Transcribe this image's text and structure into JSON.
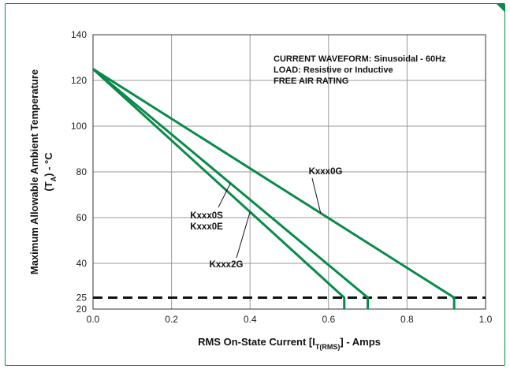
{
  "chart_data": {
    "type": "line",
    "ylabel_line1": "Maximum Allowable Ambient Temperature",
    "ylabel_line2_prefix": "(T",
    "ylabel_line2_sub": "A",
    "ylabel_line2_suffix": ") - °C",
    "xlabel_prefix": "RMS On-State Current [I",
    "xlabel_sub": "T(RMS)",
    "xlabel_suffix": "] - Amps",
    "xlim": [
      0,
      1.0
    ],
    "ylim": [
      20,
      140
    ],
    "xticks": [
      0.0,
      0.2,
      0.4,
      0.6,
      0.8,
      1.0
    ],
    "xtick_labels": [
      "0.0",
      "0.2",
      "0.4",
      "0.6",
      "0.8",
      "1.0"
    ],
    "yticks": [
      20,
      25,
      40,
      60,
      80,
      100,
      120,
      140
    ],
    "ytick_labels": [
      "20",
      "25",
      "40",
      "60",
      "80",
      "100",
      "120",
      "140"
    ],
    "grid_x": [
      0.0,
      0.2,
      0.4,
      0.6,
      0.8,
      1.0
    ],
    "grid_y": [
      20,
      40,
      60,
      80,
      100,
      120,
      140
    ],
    "grid": true,
    "annotations": [
      "CURRENT WAVEFORM: Sinusoidal - 60Hz",
      "LOAD: Resistive or Inductive",
      "FREE AIR RATING"
    ],
    "reference_line": {
      "y": 25,
      "style": "dashed",
      "color": "#111111"
    },
    "line_color": "#0a8a4a",
    "series": [
      {
        "name": "Kxxx2G",
        "x": [
          0,
          0.64,
          0.64
        ],
        "y": [
          125,
          25,
          20
        ]
      },
      {
        "name": "Kxxx0S\nKxxx0E",
        "x": [
          0,
          0.7,
          0.7
        ],
        "y": [
          125,
          25,
          20
        ]
      },
      {
        "name": "Kxxx0G",
        "x": [
          0,
          0.92,
          0.92
        ],
        "y": [
          125,
          25,
          20
        ]
      }
    ]
  }
}
